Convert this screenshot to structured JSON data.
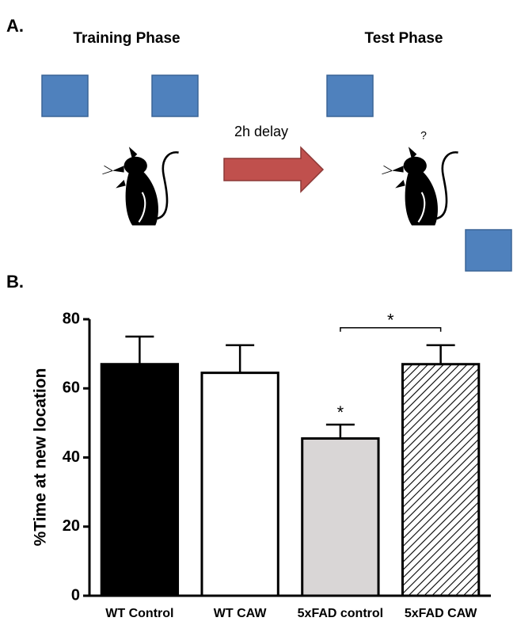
{
  "panel_a": {
    "label": "A.",
    "training": "Training Phase",
    "test": "Test Phase",
    "delay": "2h delay",
    "question": "?"
  },
  "chart_data": {
    "type": "bar",
    "panel_label": "B.",
    "ylabel": "%Time at new location",
    "categories": [
      "WT Control",
      "WT CAW",
      "5xFAD control",
      "5xFAD CAW"
    ],
    "values": [
      67,
      64.5,
      45.5,
      67
    ],
    "errors": [
      8,
      8,
      4,
      5.5
    ],
    "colors": [
      "#000000",
      "#ffffff",
      "#d9d6d6",
      "#ffffff"
    ],
    "hatch": [
      false,
      false,
      false,
      true
    ],
    "ylim": [
      0,
      80
    ],
    "yticks": [
      0,
      20,
      40,
      60,
      80
    ],
    "annotations": [
      "*",
      "*"
    ]
  }
}
